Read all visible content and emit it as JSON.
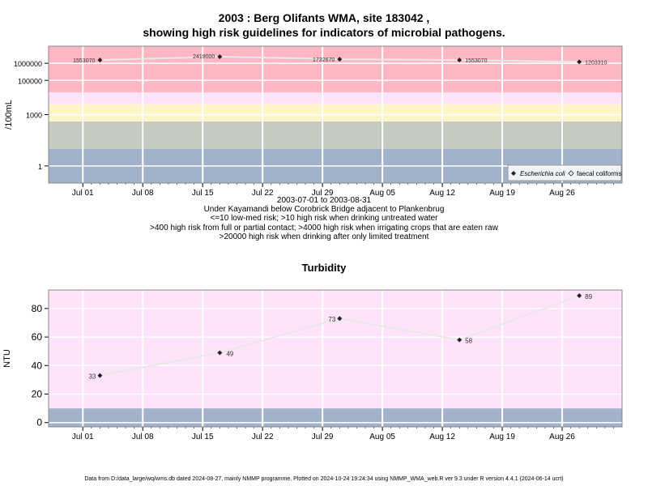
{
  "title_line1": "2003 : Berg Olifants WMA, site 183042 ,",
  "title_line2": "showing high risk guidelines for indicators of microbial pathogens.",
  "chart_data": [
    {
      "type": "scatter",
      "ylabel": "/100mL",
      "y_scale": "log",
      "ylim": [
        0.1,
        10000000
      ],
      "y_ticks": [
        {
          "v": 1,
          "label": "1"
        },
        {
          "v": 1000,
          "label": "1000"
        },
        {
          "v": 100000,
          "label": "100000"
        },
        {
          "v": 1000000,
          "label": "1000000"
        }
      ],
      "x_ticks": [
        "Jul 01",
        "Jul 08",
        "Jul 15",
        "Jul 22",
        "Jul 29",
        "Aug 05",
        "Aug 12",
        "Aug 19",
        "Aug 26"
      ],
      "x_range_note": "2003-07-01 to 2003-08-31",
      "bands": [
        {
          "from": 0.1,
          "to": 10,
          "color": "#a3b2cb"
        },
        {
          "from": 10,
          "to": 400,
          "color": "#c5cbc0"
        },
        {
          "from": 400,
          "to": 4000,
          "color": "#fff6c6"
        },
        {
          "from": 4000,
          "to": 20000,
          "color": "#ffe3fb"
        },
        {
          "from": 20000,
          "to": 10000000,
          "color": "#ffb8c3"
        }
      ],
      "series": [
        {
          "name": "Escherichia coli",
          "points": [
            {
              "date": "2003-07-03",
              "value": 1553070,
              "label": "1553070"
            },
            {
              "date": "2003-07-17",
              "value": 2419000,
              "label": "2419000"
            },
            {
              "date": "2003-07-31",
              "value": 1732670,
              "label": "1732670"
            },
            {
              "date": "2003-08-14",
              "value": 1553070,
              "label": "1553070"
            },
            {
              "date": "2003-08-28",
              "value": 1203310,
              "label": "1203310"
            }
          ]
        },
        {
          "name": "faecal coliforms",
          "points": []
        }
      ],
      "legend_position": "bottom-right",
      "notes": [
        "2003-07-01 to 2003-08-31",
        "Under Kayamandi below Corobrick Bridge adjacent to Plankenbrug",
        "<=10 low-med risk; >10 high risk when drinking untreated water",
        ">400 high risk from full or partial contact; >4000 high risk when irrigating crops that are eaten raw",
        ">20000 high risk when drinking after only limited treatment"
      ]
    },
    {
      "type": "scatter",
      "title": "Turbidity",
      "ylabel": "NTU",
      "ylim": [
        -3,
        93
      ],
      "y_ticks": [
        0,
        20,
        40,
        60,
        80
      ],
      "x_ticks": [
        "Jul 01",
        "Jul 08",
        "Jul 15",
        "Jul 22",
        "Jul 29",
        "Aug 05",
        "Aug 12",
        "Aug 19",
        "Aug 26"
      ],
      "bands": [
        {
          "from": -3,
          "to": 10,
          "color": "#a3b2cb"
        },
        {
          "from": 10,
          "to": 93,
          "color": "#ffe3fb"
        }
      ],
      "series": [
        {
          "points": [
            {
              "date": "2003-07-03",
              "value": 33,
              "label": "33"
            },
            {
              "date": "2003-07-17",
              "value": 49,
              "label": "49"
            },
            {
              "date": "2003-07-31",
              "value": 73,
              "label": "73"
            },
            {
              "date": "2003-08-14",
              "value": 58,
              "label": "58"
            },
            {
              "date": "2003-08-28",
              "value": 89,
              "label": "89"
            }
          ]
        }
      ]
    }
  ],
  "footer": "Data from D:/data_large/wq/wms.db dated 2024-08-27, mainly NMMP programme. Plotted on 2024-10-24 19:24:34 using NMMP_WMA_web.R ver 9.3 under R version 4.4.1 (2024-06-14 ucrt)"
}
